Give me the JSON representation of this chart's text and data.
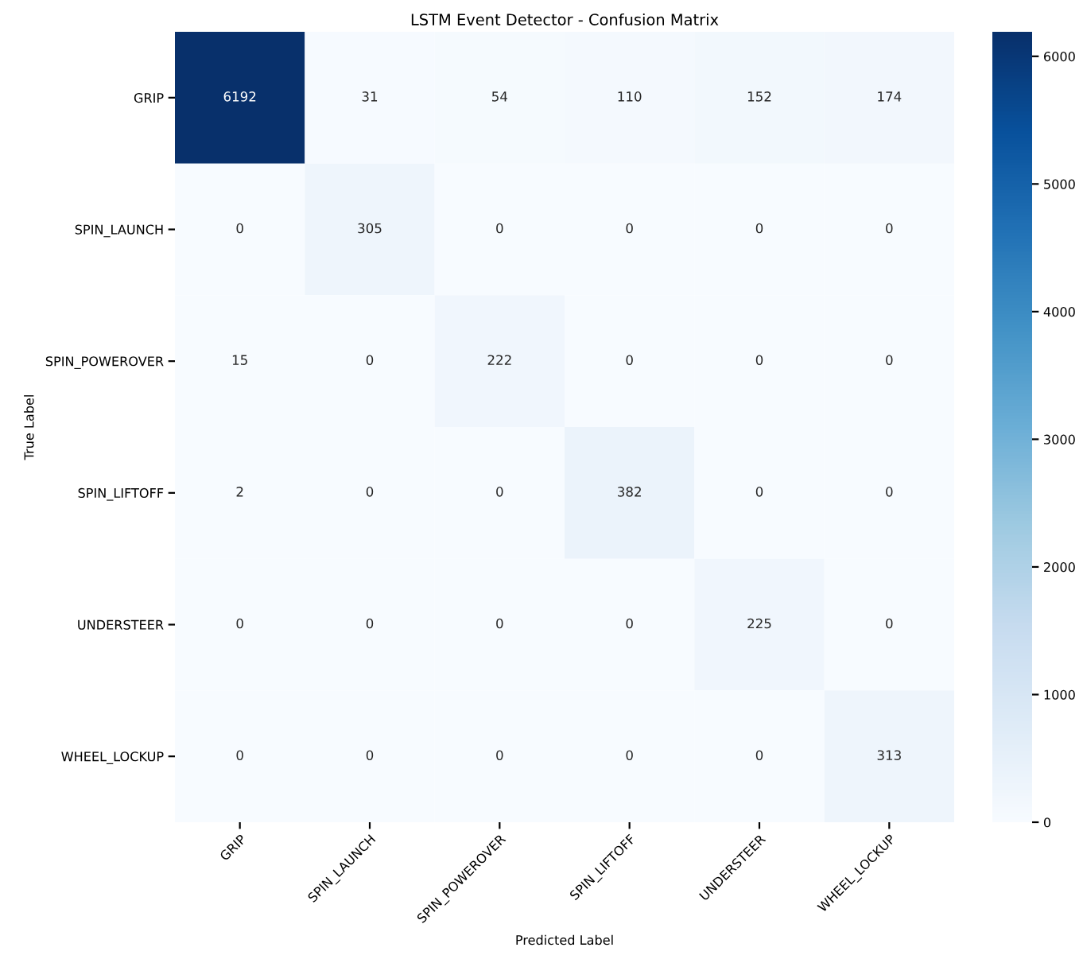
{
  "chart_data": {
    "type": "heatmap",
    "title": "LSTM Event Detector - Confusion Matrix",
    "xlabel": "Predicted Label",
    "ylabel": "True Label",
    "categories": [
      "GRIP",
      "SPIN_LAUNCH",
      "SPIN_POWEROVER",
      "SPIN_LIFTOFF",
      "UNDERSTEER",
      "WHEEL_LOCKUP"
    ],
    "y_categories": [
      "GRIP",
      "SPIN_LAUNCH",
      "SPIN_POWEROVER",
      "SPIN_LIFTOFF",
      "UNDERSTEER",
      "WHEEL_LOCKUP"
    ],
    "cells": [
      [
        6192,
        31,
        54,
        110,
        152,
        174
      ],
      [
        0,
        305,
        0,
        0,
        0,
        0
      ],
      [
        15,
        0,
        222,
        0,
        0,
        0
      ],
      [
        2,
        0,
        0,
        382,
        0,
        0
      ],
      [
        0,
        0,
        0,
        0,
        225,
        0
      ],
      [
        0,
        0,
        0,
        0,
        0,
        313
      ]
    ],
    "data_labels": true,
    "clim": [
      0,
      6192
    ],
    "cticks": [
      0,
      1000,
      2000,
      3000,
      4000,
      5000,
      6000
    ]
  }
}
